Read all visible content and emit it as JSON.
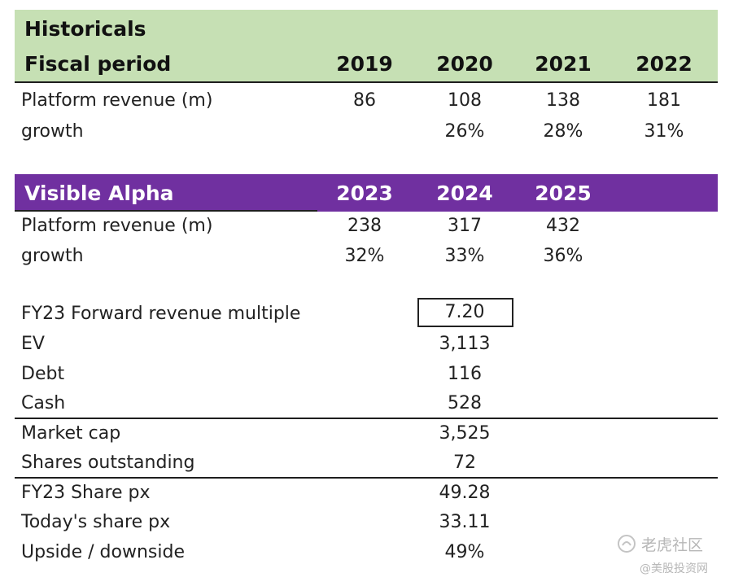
{
  "historicals": {
    "section_title": "Historicals",
    "period_label": "Fiscal period",
    "years": [
      "2019",
      "2020",
      "2021",
      "2022"
    ],
    "rows": [
      {
        "label": "Platform revenue (m)",
        "values": [
          "86",
          "108",
          "138",
          "181"
        ]
      },
      {
        "label": "growth",
        "values": [
          "",
          "26%",
          "28%",
          "31%"
        ]
      }
    ]
  },
  "visible_alpha": {
    "section_title": "Visible Alpha",
    "years": [
      "2023",
      "2024",
      "2025"
    ],
    "rows": [
      {
        "label": "Platform revenue (m)",
        "values": [
          "238",
          "317",
          "432"
        ]
      },
      {
        "label": "growth",
        "values": [
          "32%",
          "33%",
          "36%"
        ]
      }
    ]
  },
  "valuation": {
    "multiple": {
      "label": "FY23 Forward revenue multiple",
      "value": "7.20"
    },
    "ev": {
      "label": "EV",
      "value": "3,113"
    },
    "debt": {
      "label": "Debt",
      "value": "116"
    },
    "cash": {
      "label": "Cash",
      "value": "528"
    },
    "market_cap": {
      "label": "Market cap",
      "value": "3,525"
    },
    "shares": {
      "label": "Shares outstanding",
      "value": "72"
    },
    "fy23_px": {
      "label": "FY23 Share px",
      "value": "49.28"
    },
    "today_px": {
      "label": "Today's share px",
      "value": "33.11"
    },
    "upside": {
      "label": "Upside / downside",
      "value": "49%"
    }
  },
  "watermark": {
    "brand": "老虎社区",
    "handle": "@美股投资网"
  },
  "colors": {
    "historicals_header": "#c6e0b4",
    "visible_alpha_header": "#7030a0"
  }
}
